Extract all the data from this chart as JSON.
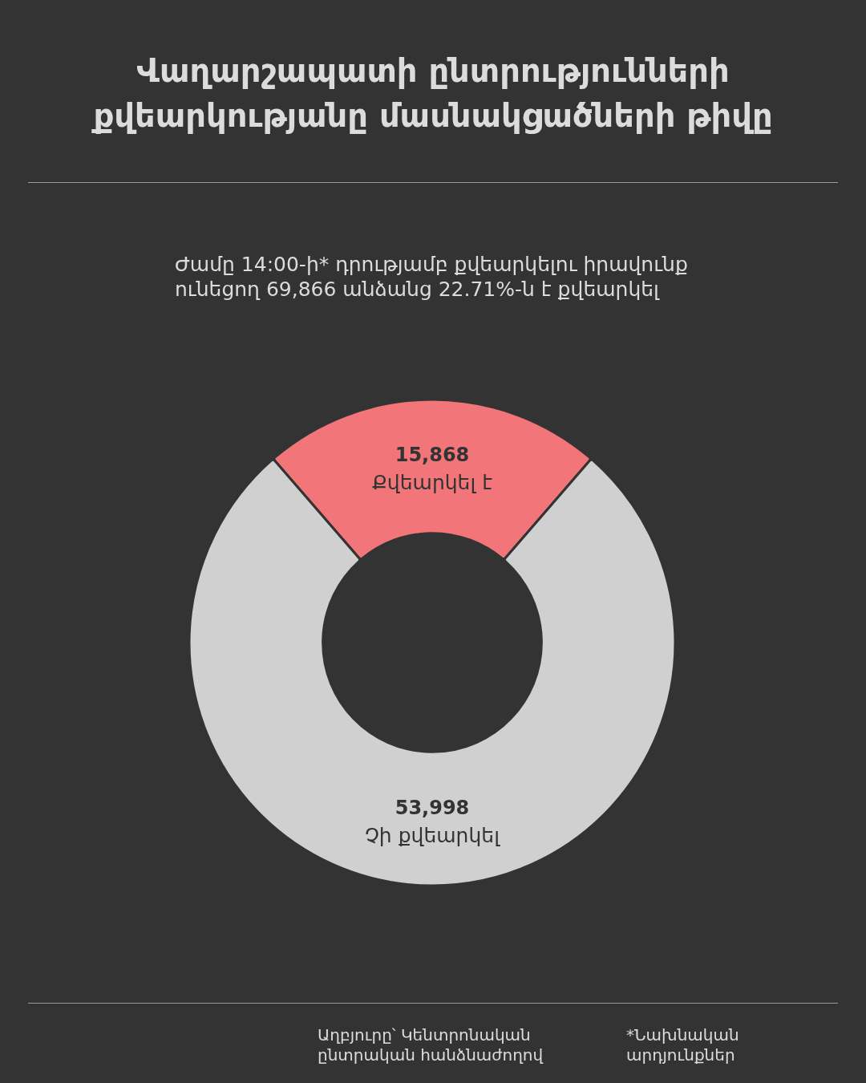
{
  "chart_data": {
    "type": "donut",
    "title": "Վաղարշապատի ընտրությունների\nքվեարկությանը մասնակցածների թիվը",
    "subtitle": "Ժամը 14:00-ի* դրությամբ քվեարկելու իրավունք\nունեցող 69,866 անձանց 22.71%-ն է քվեարկել",
    "categories": [
      "Քվեարկել է",
      "Չի քվեարկել"
    ],
    "values": [
      15868,
      53998
    ],
    "value_labels": [
      "15,868",
      "53,998"
    ],
    "colors": [
      "#f27579",
      "#d0d0d0"
    ],
    "annotations": [
      "Աղբյուրը՝ Կենտրոնական\nընտրական հանձնաժողով",
      "*Նախնական\nարդյունքներ"
    ]
  }
}
